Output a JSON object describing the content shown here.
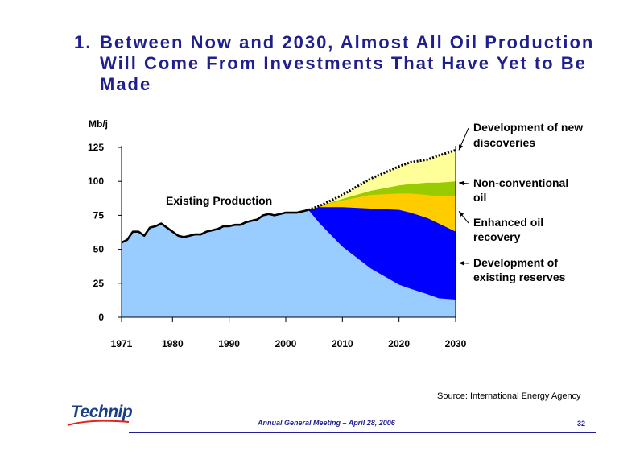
{
  "slide": {
    "title_number": "1.",
    "title": "Between Now and 2030, Almost All Oil Production Will Come From Investments That Have Yet to Be Made",
    "source": "Source: International Energy Agency",
    "logo_text": "Technip",
    "meeting": "Annual General Meeting – April 28, 2006",
    "page_number": "32"
  },
  "chart_data": {
    "type": "area",
    "ylabel": "Mb/j",
    "yticks": [
      0,
      25,
      50,
      75,
      100,
      125
    ],
    "xticks": [
      1971,
      1980,
      1990,
      2000,
      2010,
      2020,
      2030
    ],
    "xlim": [
      1971,
      2030
    ],
    "ylim": [
      0,
      125
    ],
    "annotation": "Existing Production",
    "historical": {
      "x": [
        1971,
        1972,
        1973,
        1974,
        1975,
        1976,
        1977,
        1978,
        1979,
        1980,
        1981,
        1982,
        1983,
        1984,
        1985,
        1986,
        1987,
        1988,
        1989,
        1990,
        1991,
        1992,
        1993,
        1994,
        1995,
        1996,
        1997,
        1998,
        1999,
        2000,
        2001,
        2002,
        2003,
        2004
      ],
      "y": [
        55,
        57,
        63,
        63,
        60,
        66,
        67,
        69,
        66,
        63,
        60,
        59,
        60,
        61,
        61,
        63,
        64,
        65,
        67,
        67,
        68,
        68,
        70,
        71,
        72,
        75,
        76,
        75,
        76,
        77,
        77,
        77,
        78,
        79
      ]
    },
    "projection_x": [
      2004,
      2006,
      2010,
      2015,
      2020,
      2022,
      2025,
      2027,
      2030
    ],
    "series": [
      {
        "name": "Development of existing reserves",
        "color": "#99ccff",
        "top": [
          79,
          69,
          52,
          36,
          24,
          21,
          17,
          14,
          13
        ]
      },
      {
        "name": "Development of existing reserves",
        "color": "#0000ff",
        "top": [
          79,
          81,
          81,
          80,
          79,
          77,
          73,
          69,
          63
        ]
      },
      {
        "name": "Enhanced oil recovery",
        "color": "#ffcc00",
        "top": [
          79,
          82,
          86,
          90,
          91,
          91,
          90,
          89,
          89
        ]
      },
      {
        "name": "Non-conventional oil",
        "color": "#99cc00",
        "top": [
          79,
          82,
          87,
          93,
          97,
          98,
          99,
          99,
          100
        ]
      },
      {
        "name": "Development of new discoveries",
        "color": "#ffff99",
        "top": [
          79,
          82,
          90,
          102,
          111,
          114,
          116,
          119,
          123
        ]
      }
    ],
    "labels": [
      {
        "text": [
          "Development of new",
          "discoveries"
        ],
        "arrow_value": 123
      },
      {
        "text": [
          "Non-conventional",
          "oil"
        ],
        "arrow_value": 99
      },
      {
        "text": [
          "Enhanced oil",
          "recovery"
        ],
        "arrow_value": 78
      },
      {
        "text": [
          "Development of",
          "existing reserves"
        ],
        "arrow_value": 40
      }
    ]
  }
}
